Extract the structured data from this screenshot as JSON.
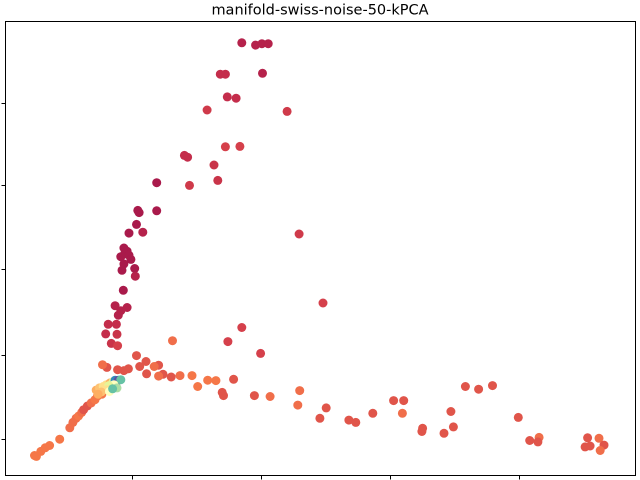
{
  "chart_data": {
    "type": "scatter",
    "title": "manifold-swiss-noise-50-kPCA",
    "xlabel": "",
    "ylabel": "",
    "x_tick_labels": [],
    "y_tick_labels": [],
    "grid": false,
    "legend": "none",
    "colormap": "Spectral",
    "xlim": [
      0,
      100
    ],
    "ylim": [
      0,
      100
    ],
    "x_ticks": [
      20,
      40.5,
      61,
      81.5
    ],
    "y_ticks": [
      8,
      26.5,
      45.5,
      64,
      82
    ],
    "points": [
      {
        "x": 37.5,
        "y": 95.3,
        "color": "#b5224b"
      },
      {
        "x": 39.7,
        "y": 94.8,
        "color": "#b5224b"
      },
      {
        "x": 40.7,
        "y": 95.1,
        "color": "#b5224b"
      },
      {
        "x": 41.7,
        "y": 95.1,
        "color": "#b5224b"
      },
      {
        "x": 40.8,
        "y": 88.6,
        "color": "#b5224b"
      },
      {
        "x": 34.1,
        "y": 88.4,
        "color": "#c42d4b"
      },
      {
        "x": 34.9,
        "y": 88.4,
        "color": "#c42d4b"
      },
      {
        "x": 35.2,
        "y": 83.4,
        "color": "#c42d4b"
      },
      {
        "x": 36.6,
        "y": 83.1,
        "color": "#c42d4b"
      },
      {
        "x": 44.7,
        "y": 80.2,
        "color": "#cf3a4a"
      },
      {
        "x": 32.0,
        "y": 80.5,
        "color": "#cf3a4a"
      },
      {
        "x": 34.9,
        "y": 72.4,
        "color": "#d5404b"
      },
      {
        "x": 37.2,
        "y": 72.5,
        "color": "#d5404b"
      },
      {
        "x": 28.4,
        "y": 70.5,
        "color": "#c42d4b"
      },
      {
        "x": 28.9,
        "y": 70.1,
        "color": "#c42d4b"
      },
      {
        "x": 33.1,
        "y": 68.4,
        "color": "#c93449"
      },
      {
        "x": 33.7,
        "y": 65.0,
        "color": "#c93449"
      },
      {
        "x": 29.2,
        "y": 63.9,
        "color": "#cf3a4a"
      },
      {
        "x": 24.0,
        "y": 64.5,
        "color": "#a91a4b"
      },
      {
        "x": 21.0,
        "y": 58.4,
        "color": "#a91a4b"
      },
      {
        "x": 24.0,
        "y": 58.3,
        "color": "#a91a4b"
      },
      {
        "x": 21.2,
        "y": 57.9,
        "color": "#a91a4b"
      },
      {
        "x": 20.8,
        "y": 55.3,
        "color": "#a91a4b"
      },
      {
        "x": 19.6,
        "y": 53.4,
        "color": "#a91a4b"
      },
      {
        "x": 21.8,
        "y": 53.6,
        "color": "#b5224b"
      },
      {
        "x": 18.8,
        "y": 50.1,
        "color": "#a91a4b"
      },
      {
        "x": 19.3,
        "y": 49.4,
        "color": "#a91a4b"
      },
      {
        "x": 18.9,
        "y": 48.8,
        "color": "#a91a4b"
      },
      {
        "x": 18.3,
        "y": 48.2,
        "color": "#a91a4b"
      },
      {
        "x": 19.6,
        "y": 48.5,
        "color": "#a91a4b"
      },
      {
        "x": 19.9,
        "y": 47.6,
        "color": "#a91a4b"
      },
      {
        "x": 18.8,
        "y": 46.6,
        "color": "#a91a4b"
      },
      {
        "x": 18.5,
        "y": 45.2,
        "color": "#a91a4b"
      },
      {
        "x": 20.5,
        "y": 45.6,
        "color": "#a91a4b"
      },
      {
        "x": 20.6,
        "y": 43.9,
        "color": "#b5224b"
      },
      {
        "x": 18.7,
        "y": 40.8,
        "color": "#a91a4b"
      },
      {
        "x": 46.6,
        "y": 53.2,
        "color": "#cf3a4a"
      },
      {
        "x": 50.4,
        "y": 38.0,
        "color": "#d5404b"
      },
      {
        "x": 17.4,
        "y": 37.4,
        "color": "#b5224b"
      },
      {
        "x": 18.3,
        "y": 36.3,
        "color": "#b5224b"
      },
      {
        "x": 19.3,
        "y": 37.0,
        "color": "#b5224b"
      },
      {
        "x": 17.9,
        "y": 35.3,
        "color": "#b5224b"
      },
      {
        "x": 16.3,
        "y": 33.3,
        "color": "#c42d4b"
      },
      {
        "x": 17.6,
        "y": 33.3,
        "color": "#c42d4b"
      },
      {
        "x": 15.9,
        "y": 31.2,
        "color": "#c42d4b"
      },
      {
        "x": 17.7,
        "y": 31.1,
        "color": "#c93449"
      },
      {
        "x": 16.8,
        "y": 29.1,
        "color": "#c93449"
      },
      {
        "x": 17.8,
        "y": 28.6,
        "color": "#d5404b"
      },
      {
        "x": 37.5,
        "y": 32.6,
        "color": "#d5404b"
      },
      {
        "x": 35.3,
        "y": 29.5,
        "color": "#d5404b"
      },
      {
        "x": 40.5,
        "y": 26.9,
        "color": "#d5404b"
      },
      {
        "x": 26.5,
        "y": 29.7,
        "color": "#f06e4a"
      },
      {
        "x": 20.8,
        "y": 26.4,
        "color": "#e0554a"
      },
      {
        "x": 22.3,
        "y": 25.1,
        "color": "#e0554a"
      },
      {
        "x": 24.3,
        "y": 24.3,
        "color": "#e0554a"
      },
      {
        "x": 23.6,
        "y": 24.0,
        "color": "#f06e4a"
      },
      {
        "x": 21.3,
        "y": 24.0,
        "color": "#e0554a"
      },
      {
        "x": 19.5,
        "y": 23.5,
        "color": "#e0554a"
      },
      {
        "x": 18.8,
        "y": 23.1,
        "color": "#e0554a"
      },
      {
        "x": 17.8,
        "y": 23.3,
        "color": "#e0554a"
      },
      {
        "x": 16.1,
        "y": 23.8,
        "color": "#e0554a"
      },
      {
        "x": 15.4,
        "y": 24.4,
        "color": "#f06e4a"
      },
      {
        "x": 22.4,
        "y": 22.4,
        "color": "#e0554a"
      },
      {
        "x": 25.0,
        "y": 22.3,
        "color": "#e0554a"
      },
      {
        "x": 26.3,
        "y": 21.7,
        "color": "#e0554a"
      },
      {
        "x": 24.3,
        "y": 21.9,
        "color": "#f06e4a"
      },
      {
        "x": 27.7,
        "y": 22.0,
        "color": "#f06e4a"
      },
      {
        "x": 29.6,
        "y": 22.0,
        "color": "#f57748"
      },
      {
        "x": 33.4,
        "y": 20.9,
        "color": "#f57748"
      },
      {
        "x": 32.1,
        "y": 21.0,
        "color": "#f57748"
      },
      {
        "x": 30.5,
        "y": 19.6,
        "color": "#f57748"
      },
      {
        "x": 36.2,
        "y": 21.2,
        "color": "#e0554a"
      },
      {
        "x": 34.4,
        "y": 18.3,
        "color": "#e0554a"
      },
      {
        "x": 34.6,
        "y": 17.6,
        "color": "#e0554a"
      },
      {
        "x": 39.5,
        "y": 17.6,
        "color": "#e0554a"
      },
      {
        "x": 42.0,
        "y": 17.4,
        "color": "#f06e4a"
      },
      {
        "x": 46.7,
        "y": 18.7,
        "color": "#f06e4a"
      },
      {
        "x": 46.4,
        "y": 15.5,
        "color": "#f06e4a"
      },
      {
        "x": 50.9,
        "y": 14.9,
        "color": "#e0554a"
      },
      {
        "x": 49.9,
        "y": 12.6,
        "color": "#e0554a"
      },
      {
        "x": 54.5,
        "y": 12.2,
        "color": "#e0554a"
      },
      {
        "x": 55.6,
        "y": 11.7,
        "color": "#e0554a"
      },
      {
        "x": 58.3,
        "y": 13.7,
        "color": "#e0554a"
      },
      {
        "x": 61.6,
        "y": 16.5,
        "color": "#e0554a"
      },
      {
        "x": 63.2,
        "y": 16.5,
        "color": "#e0554a"
      },
      {
        "x": 63.0,
        "y": 13.7,
        "color": "#f06e4a"
      },
      {
        "x": 66.2,
        "y": 10.4,
        "color": "#e0554a"
      },
      {
        "x": 66.1,
        "y": 9.7,
        "color": "#e0554a"
      },
      {
        "x": 69.6,
        "y": 9.3,
        "color": "#e0554a"
      },
      {
        "x": 70.7,
        "y": 14.1,
        "color": "#e0554a"
      },
      {
        "x": 71.1,
        "y": 10.7,
        "color": "#e0554a"
      },
      {
        "x": 73.0,
        "y": 19.6,
        "color": "#e0554a"
      },
      {
        "x": 75.1,
        "y": 19.0,
        "color": "#e0554a"
      },
      {
        "x": 77.3,
        "y": 19.8,
        "color": "#e0554a"
      },
      {
        "x": 81.4,
        "y": 12.8,
        "color": "#e0554a"
      },
      {
        "x": 83.2,
        "y": 7.7,
        "color": "#e0554a"
      },
      {
        "x": 84.7,
        "y": 8.4,
        "color": "#f06e4a"
      },
      {
        "x": 84.5,
        "y": 7.4,
        "color": "#e0554a"
      },
      {
        "x": 92.0,
        "y": 6.3,
        "color": "#e0554a"
      },
      {
        "x": 92.4,
        "y": 8.3,
        "color": "#e0554a"
      },
      {
        "x": 92.8,
        "y": 6.5,
        "color": "#e0554a"
      },
      {
        "x": 94.2,
        "y": 8.2,
        "color": "#f06e4a"
      },
      {
        "x": 95.0,
        "y": 6.7,
        "color": "#e0554a"
      },
      {
        "x": 94.4,
        "y": 5.5,
        "color": "#f06e4a"
      },
      {
        "x": 4.6,
        "y": 4.4,
        "color": "#f57748"
      },
      {
        "x": 4.9,
        "y": 4.2,
        "color": "#f57748"
      },
      {
        "x": 5.6,
        "y": 5.3,
        "color": "#f57748"
      },
      {
        "x": 6.3,
        "y": 6.1,
        "color": "#f57748"
      },
      {
        "x": 7.0,
        "y": 6.6,
        "color": "#f57748"
      },
      {
        "x": 8.6,
        "y": 8.0,
        "color": "#f57748"
      },
      {
        "x": 10.2,
        "y": 10.5,
        "color": "#f06e4a"
      },
      {
        "x": 10.7,
        "y": 11.7,
        "color": "#f06e4a"
      },
      {
        "x": 11.2,
        "y": 12.6,
        "color": "#f06e4a"
      },
      {
        "x": 11.6,
        "y": 13.1,
        "color": "#f57748"
      },
      {
        "x": 12.1,
        "y": 13.9,
        "color": "#f06e4a"
      },
      {
        "x": 12.4,
        "y": 14.5,
        "color": "#e0554a"
      },
      {
        "x": 13.0,
        "y": 15.3,
        "color": "#e0554a"
      },
      {
        "x": 13.6,
        "y": 16.0,
        "color": "#f06e4a"
      },
      {
        "x": 14.2,
        "y": 16.7,
        "color": "#f57748"
      },
      {
        "x": 14.6,
        "y": 17.5,
        "color": "#f57748"
      },
      {
        "x": 15.3,
        "y": 17.9,
        "color": "#f57748"
      },
      {
        "x": 14.4,
        "y": 18.8,
        "color": "#fdae61"
      },
      {
        "x": 14.9,
        "y": 19.3,
        "color": "#fdc273"
      },
      {
        "x": 15.5,
        "y": 19.6,
        "color": "#fee08b"
      },
      {
        "x": 16.0,
        "y": 20.0,
        "color": "#fee08b"
      },
      {
        "x": 16.6,
        "y": 20.4,
        "color": "#fdae61"
      },
      {
        "x": 17.1,
        "y": 20.7,
        "color": "#e6f598"
      },
      {
        "x": 17.4,
        "y": 21.0,
        "color": "#3288bd"
      },
      {
        "x": 17.9,
        "y": 21.0,
        "color": "#5e4fa2"
      },
      {
        "x": 18.3,
        "y": 21.1,
        "color": "#66c2a5"
      },
      {
        "x": 17.2,
        "y": 20.0,
        "color": "#ffffbf"
      },
      {
        "x": 16.4,
        "y": 19.8,
        "color": "#e6f598"
      },
      {
        "x": 17.7,
        "y": 19.3,
        "color": "#abdda4"
      },
      {
        "x": 16.1,
        "y": 18.9,
        "color": "#fee08b"
      },
      {
        "x": 15.2,
        "y": 18.4,
        "color": "#fdc273"
      },
      {
        "x": 14.7,
        "y": 17.9,
        "color": "#fdae61"
      },
      {
        "x": 16.5,
        "y": 18.5,
        "color": "#ffffbf"
      },
      {
        "x": 17.0,
        "y": 19.1,
        "color": "#66c2a5"
      }
    ]
  }
}
